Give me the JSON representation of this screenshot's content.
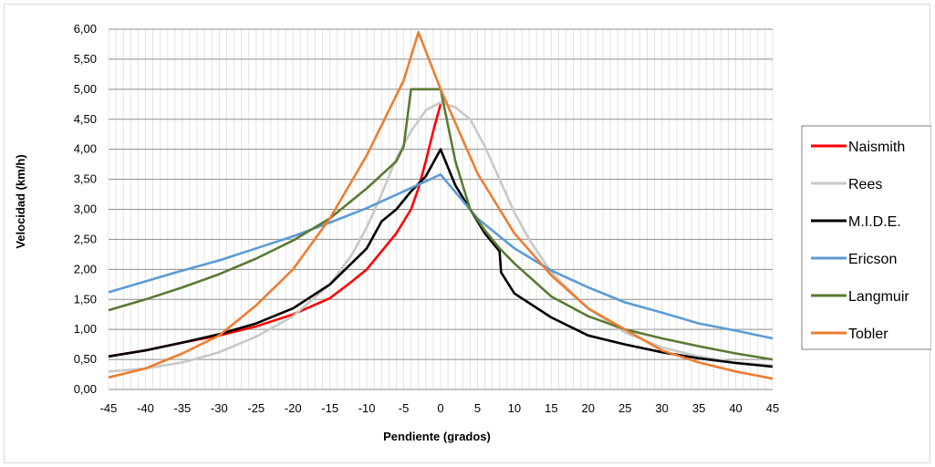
{
  "chart_data": {
    "type": "line",
    "xlabel": "Pendiente (grados)",
    "ylabel": "Velocidad  (km/h)",
    "xlim": [
      -45,
      45
    ],
    "ylim": [
      0,
      6
    ],
    "x_ticks": [
      "-45",
      "-40",
      "-35",
      "-30",
      "-25",
      "-20",
      "-15",
      "-10",
      "-5",
      "0",
      "5",
      "10",
      "15",
      "20",
      "25",
      "30",
      "35",
      "40",
      "45"
    ],
    "y_ticks": [
      "0,00",
      "0,50",
      "1,00",
      "1,50",
      "2,00",
      "2,50",
      "3,00",
      "3,50",
      "4,00",
      "4,50",
      "5,00",
      "5,50",
      "6,00"
    ],
    "grid": "horizontal and vertical (every degree)",
    "legend_position": "right",
    "series": [
      {
        "name": "Naismith",
        "color": "#ff0000",
        "x": [
          -45,
          -40,
          -35,
          -30,
          -25,
          -20,
          -15,
          -12,
          -10,
          -8,
          -6,
          -4,
          -3,
          -2,
          -1,
          0
        ],
        "y": [
          0.55,
          0.65,
          0.78,
          0.9,
          1.05,
          1.25,
          1.52,
          1.8,
          2.0,
          2.3,
          2.6,
          3.0,
          3.35,
          3.8,
          4.3,
          4.75
        ]
      },
      {
        "name": "Rees",
        "color": "#c8c8c8",
        "x": [
          -45,
          -40,
          -35,
          -30,
          -25,
          -20,
          -15,
          -12,
          -10,
          -8,
          -6,
          -4,
          -2,
          0,
          2,
          4,
          6,
          8,
          10,
          12,
          15,
          20,
          25,
          30,
          35,
          40,
          45
        ],
        "y": [
          0.3,
          0.35,
          0.45,
          0.62,
          0.88,
          1.22,
          1.75,
          2.25,
          2.7,
          3.25,
          3.85,
          4.3,
          4.65,
          4.78,
          4.7,
          4.5,
          4.05,
          3.5,
          2.95,
          2.5,
          1.95,
          1.35,
          0.95,
          0.7,
          0.55,
          0.45,
          0.4
        ]
      },
      {
        "name": "M.I.D.E.",
        "color": "#000000",
        "x": [
          -45,
          -40,
          -35,
          -30,
          -25,
          -20,
          -15,
          -10,
          -8,
          -6,
          -4,
          -2,
          0,
          2,
          4,
          6,
          8,
          8.2,
          10,
          15,
          20,
          25,
          30,
          35,
          40,
          45
        ],
        "y": [
          0.55,
          0.65,
          0.78,
          0.92,
          1.1,
          1.35,
          1.75,
          2.35,
          2.8,
          3.0,
          3.3,
          3.55,
          4.0,
          3.4,
          3.0,
          2.6,
          2.3,
          1.95,
          1.6,
          1.2,
          0.9,
          0.75,
          0.62,
          0.52,
          0.44,
          0.38
        ]
      },
      {
        "name": "Ericson",
        "color": "#5b9bd5",
        "x": [
          -45,
          -40,
          -35,
          -30,
          -25,
          -20,
          -15,
          -10,
          -5,
          0,
          5,
          10,
          15,
          20,
          25,
          30,
          35,
          40,
          45
        ],
        "y": [
          1.62,
          1.8,
          1.98,
          2.15,
          2.35,
          2.55,
          2.78,
          3.02,
          3.3,
          3.58,
          2.85,
          2.35,
          1.98,
          1.7,
          1.45,
          1.28,
          1.1,
          0.98,
          0.85
        ]
      },
      {
        "name": "Langmuir",
        "color": "#5a7a32",
        "x": [
          -45,
          -40,
          -35,
          -30,
          -25,
          -20,
          -15,
          -10,
          -6,
          -5,
          -4,
          -3,
          -2,
          -1,
          0,
          2,
          4,
          6,
          8,
          10,
          15,
          20,
          25,
          30,
          35,
          40,
          45
        ],
        "y": [
          1.32,
          1.5,
          1.7,
          1.92,
          2.18,
          2.48,
          2.85,
          3.35,
          3.8,
          4.05,
          5.0,
          5.0,
          5.0,
          5.0,
          5.0,
          3.8,
          3.0,
          2.65,
          2.35,
          2.1,
          1.55,
          1.22,
          1.0,
          0.85,
          0.72,
          0.6,
          0.5
        ]
      },
      {
        "name": "Tobler",
        "color": "#ed7d31",
        "x": [
          -45,
          -40,
          -35,
          -30,
          -25,
          -20,
          -15,
          -10,
          -5,
          -3,
          0,
          5,
          10,
          15,
          20,
          25,
          30,
          35,
          40,
          45
        ],
        "y": [
          0.2,
          0.35,
          0.6,
          0.9,
          1.4,
          2.0,
          2.85,
          3.9,
          5.15,
          5.95,
          5.0,
          3.6,
          2.6,
          1.9,
          1.35,
          1.0,
          0.65,
          0.45,
          0.3,
          0.18
        ]
      }
    ]
  }
}
